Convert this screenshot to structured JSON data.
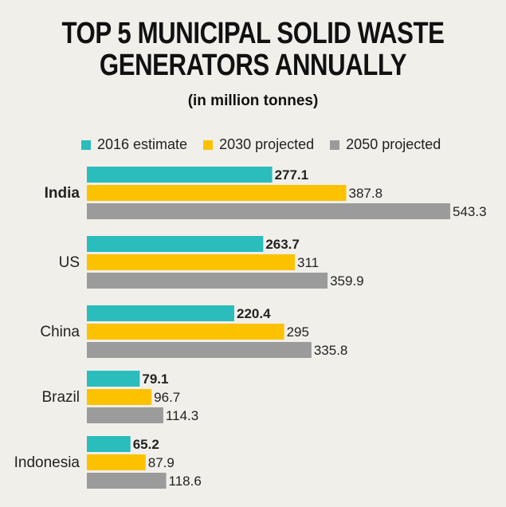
{
  "title_line1": "TOP 5 MUNICIPAL SOLID WASTE",
  "title_line2": "GENERATORS ANNUALLY",
  "subtitle": "(in million tonnes)",
  "colors": {
    "s2016": "#2bbcbc",
    "s2030": "#fcc200",
    "s2050": "#9b9b9b"
  },
  "chart_data": {
    "type": "bar",
    "orientation": "horizontal",
    "title": "TOP 5 MUNICIPAL SOLID WASTE GENERATORS ANNUALLY",
    "subtitle": "(in million tonnes)",
    "categories": [
      "India",
      "US",
      "China",
      "Brazil",
      "Indonesia"
    ],
    "series": [
      {
        "name": "2016 estimate",
        "values": [
          277.1,
          263.7,
          220.4,
          79.1,
          65.2
        ],
        "labels": [
          "277.1",
          "263.7",
          "220.4",
          "79.1",
          "65.2"
        ]
      },
      {
        "name": "2030 projected",
        "values": [
          387.8,
          311,
          295,
          96.7,
          87.9
        ],
        "labels": [
          "387.8",
          "311",
          "295",
          "96.7",
          "87.9"
        ]
      },
      {
        "name": "2050 projected",
        "values": [
          543.3,
          359.9,
          335.8,
          114.3,
          118.6
        ],
        "labels": [
          "543.3",
          "359.9",
          "335.8",
          "114.3",
          "118.6"
        ]
      }
    ],
    "legend_position": "top",
    "grid": false,
    "xlim": [
      0,
      543.3
    ]
  }
}
